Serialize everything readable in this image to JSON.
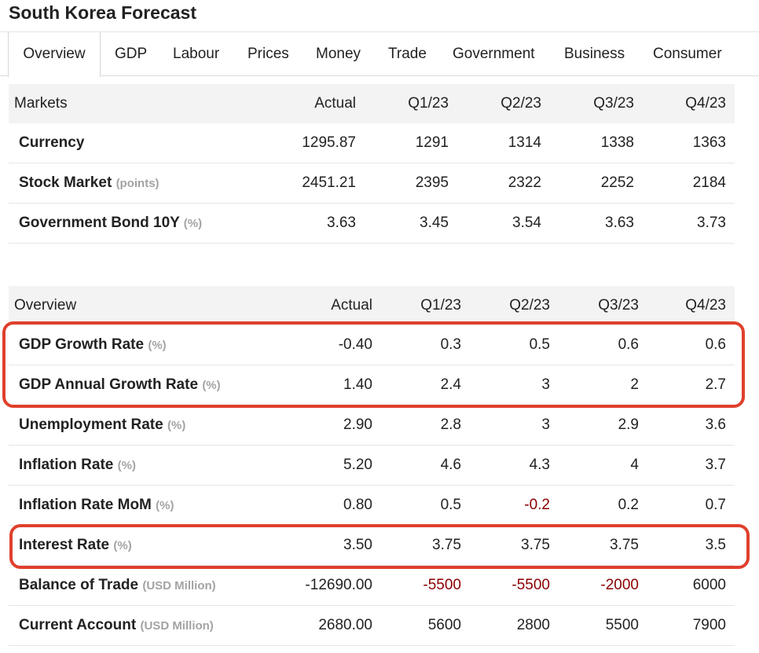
{
  "page": {
    "title": "South Korea Forecast"
  },
  "tabs": [
    "Overview",
    "GDP",
    "Labour",
    "Prices",
    "Money",
    "Trade",
    "Government",
    "Business",
    "Consumer"
  ],
  "markets": {
    "headers": [
      "Markets",
      "Actual",
      "Q1/23",
      "Q2/23",
      "Q3/23",
      "Q4/23"
    ],
    "rows": [
      {
        "name": "Currency",
        "unit": "",
        "values": [
          "1295.87",
          "1291",
          "1314",
          "1338",
          "1363"
        ]
      },
      {
        "name": "Stock Market",
        "unit": "(points)",
        "values": [
          "2451.21",
          "2395",
          "2322",
          "2252",
          "2184"
        ]
      },
      {
        "name": "Government Bond 10Y",
        "unit": "(%)",
        "values": [
          "3.63",
          "3.45",
          "3.54",
          "3.63",
          "3.73"
        ]
      }
    ]
  },
  "overview": {
    "headers": [
      "Overview",
      "Actual",
      "Q1/23",
      "Q2/23",
      "Q3/23",
      "Q4/23"
    ],
    "rows": [
      {
        "name": "GDP Growth Rate",
        "unit": "(%)",
        "values": [
          "-0.40",
          "0.3",
          "0.5",
          "0.6",
          "0.6"
        ]
      },
      {
        "name": "GDP Annual Growth Rate",
        "unit": "(%)",
        "values": [
          "1.40",
          "2.4",
          "3",
          "2",
          "2.7"
        ]
      },
      {
        "name": "Unemployment Rate",
        "unit": "(%)",
        "values": [
          "2.90",
          "2.8",
          "3",
          "2.9",
          "3.6"
        ]
      },
      {
        "name": "Inflation Rate",
        "unit": "(%)",
        "values": [
          "5.20",
          "4.6",
          "4.3",
          "4",
          "3.7"
        ]
      },
      {
        "name": "Inflation Rate MoM",
        "unit": "(%)",
        "values": [
          "0.80",
          "0.5",
          "-0.2",
          "0.2",
          "0.7"
        ]
      },
      {
        "name": "Interest Rate",
        "unit": "(%)",
        "values": [
          "3.50",
          "3.75",
          "3.75",
          "3.75",
          "3.5"
        ]
      },
      {
        "name": "Balance of Trade",
        "unit": "(USD Million)",
        "values": [
          "-12690.00",
          "-5500",
          "-5500",
          "-2000",
          "6000"
        ]
      },
      {
        "name": "Current Account",
        "unit": "(USD Million)",
        "values": [
          "2680.00",
          "5600",
          "2800",
          "5500",
          "7900"
        ]
      }
    ]
  },
  "colors": {
    "negative_forecast": "#8b0000",
    "highlight_border": "#e0402c"
  }
}
